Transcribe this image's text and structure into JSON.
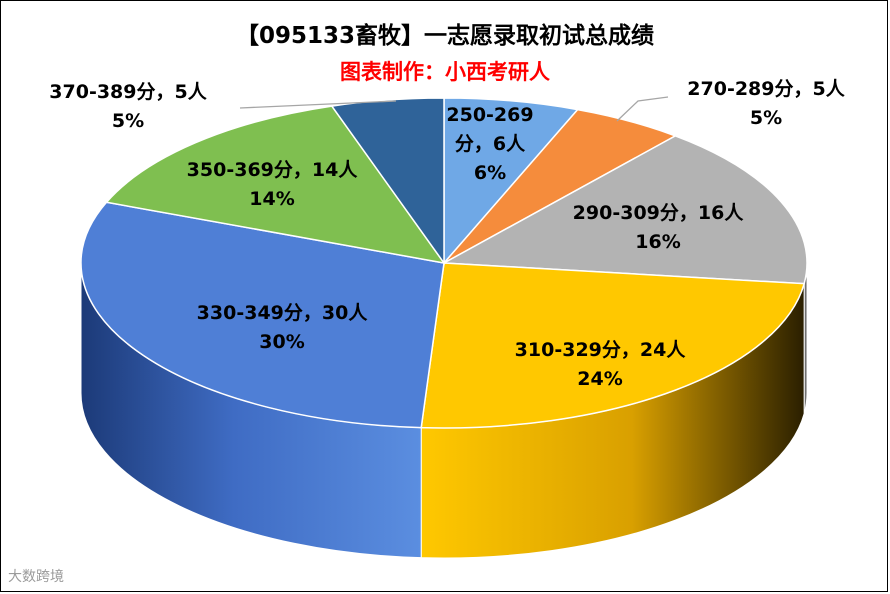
{
  "title": "【095133畜牧】一志愿录取初试总成绩",
  "subtitle": "图表制作：小西考研人",
  "watermark": "大数跨境",
  "chart_data": {
    "type": "pie",
    "style": "3d",
    "legend": "none",
    "slices": [
      {
        "category": "250-269分",
        "count": 6,
        "percent": "6%",
        "label_lines": [
          "250-269",
          "分，6人",
          "6%"
        ],
        "color": "#6fa8e6"
      },
      {
        "category": "270-289分",
        "count": 5,
        "percent": "5%",
        "label_lines": [
          "270-289分，5人",
          "5%"
        ],
        "color": "#f58c3c"
      },
      {
        "category": "290-309分",
        "count": 16,
        "percent": "16%",
        "label_lines": [
          "290-309分，16人",
          "16%"
        ],
        "color": "#b3b3b3"
      },
      {
        "category": "310-329分",
        "count": 24,
        "percent": "24%",
        "label_lines": [
          "310-329分，24人",
          "24%"
        ],
        "color": "#ffc800"
      },
      {
        "category": "330-349分",
        "count": 30,
        "percent": "30%",
        "label_lines": [
          "330-349分，30人",
          "30%"
        ],
        "color": "#4f7fd6"
      },
      {
        "category": "350-369分",
        "count": 14,
        "percent": "14%",
        "label_lines": [
          "350-369分，14人",
          "14%"
        ],
        "color": "#7fbf50"
      },
      {
        "category": "370-389分",
        "count": 5,
        "percent": "5%",
        "label_lines": [
          "370-389分，5人",
          "5%"
        ],
        "color": "#2f6399"
      }
    ]
  }
}
